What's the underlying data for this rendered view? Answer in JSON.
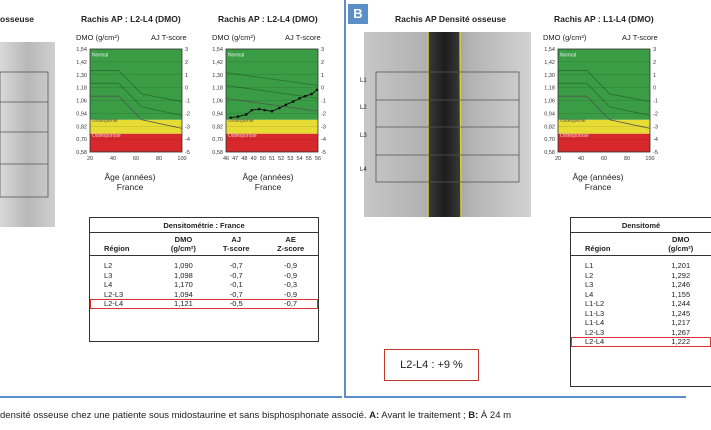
{
  "panelA": {
    "scan_title": "osseuse",
    "chart1": {
      "title": "Rachis AP : L2-L4 (DMO)",
      "ylabel": "DMO (g/cm²)",
      "y2label": "AJ T-score",
      "xlabel": "Âge (années)",
      "country": "France",
      "zone_normal": "Normal",
      "zone_osteopenie": "Ostéopénie",
      "zone_osteoporose": "Ostéoporose"
    },
    "chart2": {
      "title": "Rachis AP : L2-L4 (DMO)",
      "ylabel": "DMO (g/cm²)",
      "y2label": "AJ T-score",
      "xlabel": "Âge (années)",
      "country": "France",
      "zone_normal": "Normal",
      "zone_osteopenie": "Ostéopénie",
      "zone_osteoporose": "Ostéoporose"
    },
    "table": {
      "title": "Densitométrie : France",
      "headers": {
        "region": "Région",
        "dmo1": "DMO",
        "dmo2": "(g/cm²)",
        "aj1": "AJ",
        "aj2": "T-score",
        "ae1": "AE",
        "ae2": "Z-score"
      },
      "rows": [
        {
          "region": "L2",
          "dmo": "1,090",
          "t": "-0,7",
          "z": "-0,9"
        },
        {
          "region": "L3",
          "dmo": "1,098",
          "t": "-0,7",
          "z": "-0,9"
        },
        {
          "region": "L4",
          "dmo": "1,170",
          "t": "-0,1",
          "z": "-0,3"
        },
        {
          "region": "L2-L3",
          "dmo": "1,094",
          "t": "-0,7",
          "z": "-0,9"
        },
        {
          "region": "L2-L4",
          "dmo": "1,121",
          "t": "-0,5",
          "z": "-0,7"
        }
      ]
    }
  },
  "panelB": {
    "label": "B",
    "scan_title": "Rachis AP Densité osseuse",
    "vertebrae": [
      "L1",
      "L2",
      "L3",
      "L4"
    ],
    "chart": {
      "title": "Rachis AP : L1-L4 (DMO)",
      "ylabel": "DMO (g/cm²)",
      "y2label": "AJ T-score",
      "xlabel": "Âge (années)",
      "country": "France",
      "zone_normal": "Normal",
      "zone_osteopenie": "Ostéopénie",
      "zone_osteoporose": "Ostéoporose"
    },
    "delta": "L2-L4 : +9 %",
    "table": {
      "title": "Densitomé",
      "headers": {
        "region": "Région",
        "dmo1": "DMO",
        "dmo2": "(g/cm²)"
      },
      "rows": [
        {
          "region": "L1",
          "dmo": "1,201"
        },
        {
          "region": "L2",
          "dmo": "1,292"
        },
        {
          "region": "L3",
          "dmo": "1,246"
        },
        {
          "region": "L4",
          "dmo": "1,155"
        },
        {
          "region": "L1-L2",
          "dmo": "1,244"
        },
        {
          "region": "L1-L3",
          "dmo": "1,245"
        },
        {
          "region": "L1-L4",
          "dmo": "1,217"
        },
        {
          "region": "L2-L3",
          "dmo": "1,267"
        },
        {
          "region": "L2-L4",
          "dmo": "1,222"
        }
      ]
    }
  },
  "axes": {
    "dmo_ticks": [
      "1,54",
      "1,42",
      "1,30",
      "1,18",
      "1,06",
      "0,94",
      "0,82",
      "0,70",
      "0,58"
    ],
    "tscore_ticks": [
      "3",
      "2",
      "1",
      "0",
      "-1",
      "-2",
      "-3",
      "-4",
      "-5"
    ],
    "age_ticks_wide": [
      "20",
      "40",
      "60",
      "80",
      "100"
    ],
    "age_ticks_narrow": [
      "46",
      "47",
      "48",
      "49",
      "50",
      "51",
      "52",
      "53",
      "54",
      "55",
      "56"
    ]
  },
  "chart_data": [
    {
      "type": "area",
      "title": "Rachis AP : L2-L4 (DMO)",
      "xlabel": "Âge (années)",
      "ylabel": "DMO (g/cm²)",
      "xlim": [
        20,
        100
      ],
      "ylim": [
        0.58,
        1.54
      ],
      "series": []
    },
    {
      "type": "line",
      "title": "Rachis AP : L2-L4 (DMO)",
      "xlabel": "Âge (années)",
      "ylabel": "DMO (g/cm²)",
      "xlim": [
        46,
        56
      ],
      "ylim": [
        0.58,
        1.54
      ],
      "series": [
        {
          "values": [
            [
              46.5,
              0.9
            ],
            [
              47.3,
              0.91
            ],
            [
              48.2,
              0.93
            ],
            [
              48.8,
              0.97
            ],
            [
              49.6,
              0.98
            ],
            [
              50.2,
              0.97
            ],
            [
              51.0,
              0.96
            ],
            [
              51.8,
              0.99
            ],
            [
              52.5,
              1.02
            ],
            [
              53.3,
              1.05
            ],
            [
              54.0,
              1.08
            ],
            [
              54.6,
              1.1
            ],
            [
              55.3,
              1.12
            ],
            [
              55.9,
              1.16
            ]
          ]
        }
      ]
    },
    {
      "type": "area",
      "title": "Rachis AP : L1-L4 (DMO)",
      "xlabel": "Âge (années)",
      "ylabel": "DMO (g/cm²)",
      "xlim": [
        20,
        100
      ],
      "ylim": [
        0.58,
        1.54
      ],
      "series": []
    }
  ],
  "caption": {
    "pre": "densité osseuse chez une patiente sous midostaurine et sans bisphosphonate associé. ",
    "a_label": "A:",
    "a_text": " Avant le traitement ; ",
    "b_label": "B:",
    "b_text": " À 24 m"
  },
  "colors": {
    "normal_zone": "#3a9c45",
    "osteopenie_zone": "#e7dc34",
    "osteoporose_zone": "#d7282c",
    "panel_border": "#5b8fc7",
    "highlight": "#d33333"
  }
}
